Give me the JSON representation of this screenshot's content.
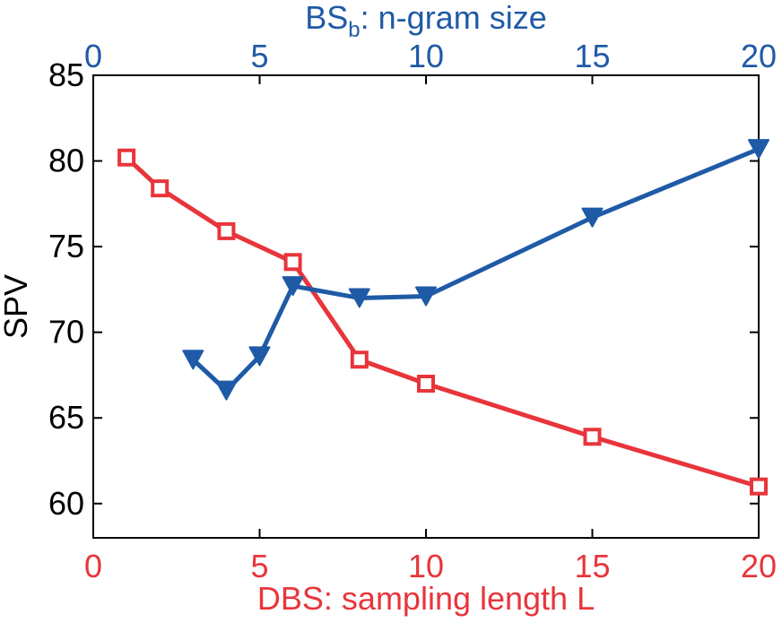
{
  "chart_data": {
    "type": "line",
    "ylabel": "SPV",
    "ylim": [
      58,
      85
    ],
    "y_ticks": [
      "60",
      "65",
      "70",
      "75",
      "80",
      "85"
    ],
    "x_bottom": {
      "label": "DBS: sampling length L",
      "lim": [
        0,
        20
      ],
      "ticks": [
        "0",
        "5",
        "10",
        "15",
        "20"
      ],
      "color": "#e8353b"
    },
    "x_top": {
      "label_main": "BS",
      "label_sub": "b",
      "label_rest": ": n-gram size",
      "lim": [
        0,
        20
      ],
      "ticks": [
        "0",
        "5",
        "10",
        "15",
        "20"
      ],
      "color": "#1f5aa6"
    },
    "grid": false,
    "series": [
      {
        "axis": "bottom",
        "marker": "square-open",
        "color": "#e8353b",
        "x": [
          1,
          2,
          4,
          6,
          8,
          10,
          15,
          20
        ],
        "y": [
          80.2,
          78.4,
          75.9,
          74.1,
          68.4,
          67.0,
          63.9,
          61.0
        ]
      },
      {
        "axis": "top",
        "marker": "triangle-down-filled",
        "color": "#1f5aa6",
        "x": [
          3,
          4,
          5,
          6,
          8,
          10,
          15,
          20
        ],
        "y": [
          68.4,
          66.6,
          68.6,
          72.7,
          72.0,
          72.1,
          76.7,
          80.7
        ]
      }
    ]
  }
}
